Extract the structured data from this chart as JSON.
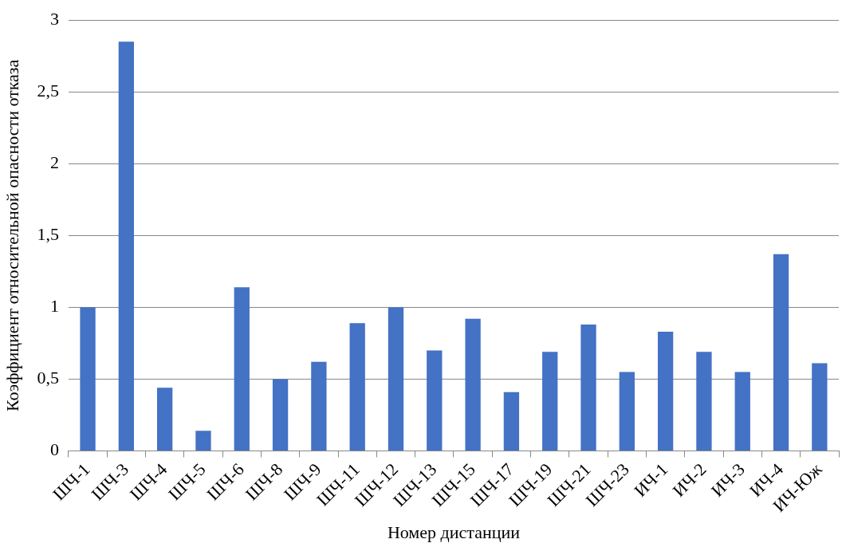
{
  "chart_data": {
    "type": "bar",
    "xlabel": "Номер дистанции",
    "ylabel": "Коэффициент относительной опасности отказа",
    "categories": [
      "ШЧ-1",
      "ШЧ-3",
      "ШЧ-4",
      "ШЧ-5",
      "ШЧ-6",
      "ШЧ-8",
      "ШЧ-9",
      "ШЧ-11",
      "ШЧ-12",
      "ШЧ-13",
      "ШЧ-15",
      "ШЧ-17",
      "ШЧ-19",
      "ШЧ-21",
      "ШЧ-23",
      "ИЧ-1",
      "ИЧ-2",
      "ИЧ-3",
      "ИЧ-4",
      "ИЧ-Юж"
    ],
    "values": [
      1.0,
      2.85,
      0.44,
      0.14,
      1.14,
      0.5,
      0.62,
      0.89,
      1.0,
      0.7,
      0.92,
      0.41,
      0.69,
      0.88,
      0.55,
      0.83,
      0.69,
      0.55,
      1.37,
      0.61
    ],
    "color": "#4472c4",
    "ylim": [
      0,
      3
    ],
    "yticks": [
      0,
      {
        "value": 0.5,
        "label": "0,5"
      },
      1,
      {
        "value": 1.5,
        "label": "1,5"
      },
      2,
      {
        "value": 2.5,
        "label": "2,5"
      },
      3
    ],
    "grid": "y"
  }
}
